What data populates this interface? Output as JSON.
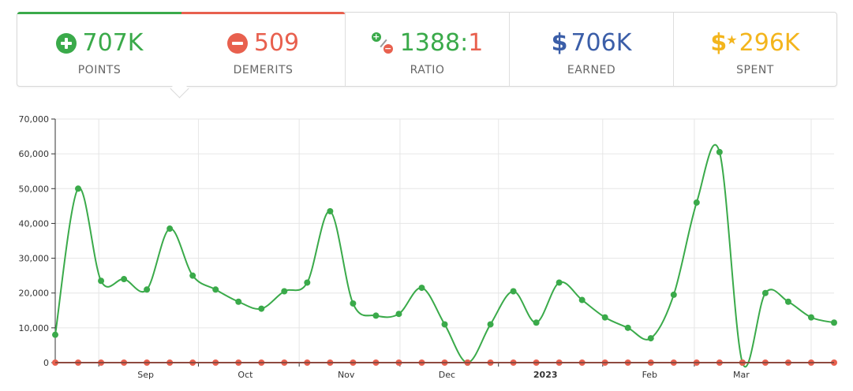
{
  "stats": {
    "points": {
      "value": "707K",
      "label": "POINTS",
      "icon": "plus-circle-icon",
      "color": "#3aaa4a"
    },
    "demerits": {
      "value": "509",
      "label": "DEMERITS",
      "icon": "minus-circle-icon",
      "color": "#e8604e"
    },
    "ratio": {
      "left": "1388",
      "colon": ":",
      "right": "1",
      "label": "RATIO",
      "icon": "ratio-icon"
    },
    "earned": {
      "symbol": "$",
      "value": "706K",
      "label": "EARNED",
      "icon": "dollar-icon",
      "color": "#3b5ea8"
    },
    "spent": {
      "symbol": "$",
      "star": "★",
      "value": "296K",
      "label": "SPENT",
      "icon": "dollar-star-icon",
      "color": "#f3b51d"
    }
  },
  "chart_data": {
    "type": "line",
    "ylim": [
      0,
      70000
    ],
    "y_ticks": [
      0,
      10000,
      20000,
      30000,
      40000,
      50000,
      60000,
      70000
    ],
    "y_tick_labels": [
      "0",
      "10,000",
      "20,000",
      "30,000",
      "40,000",
      "50,000",
      "60,000",
      "70,000"
    ],
    "x_labels": [
      {
        "text": "Sep",
        "after_index": 3.95,
        "bold": false
      },
      {
        "text": "Oct",
        "after_index": 8.3,
        "bold": false
      },
      {
        "text": "Nov",
        "after_index": 12.7,
        "bold": false
      },
      {
        "text": "Dec",
        "after_index": 17.1,
        "bold": false
      },
      {
        "text": "2023",
        "after_index": 21.4,
        "bold": true
      },
      {
        "text": "Feb",
        "after_index": 25.95,
        "bold": false
      },
      {
        "text": "Mar",
        "after_index": 29.95,
        "bold": false
      }
    ],
    "grid": true,
    "series": [
      {
        "color": "#3aaa4a",
        "values": [
          8000,
          50000,
          23500,
          24000,
          21000,
          38500,
          25000,
          21000,
          17500,
          15500,
          20500,
          23000,
          43500,
          17000,
          13500,
          14000,
          21500,
          11000,
          0,
          11000,
          20500,
          11500,
          23000,
          18000,
          13000,
          10000,
          7000,
          19500,
          46000,
          60500,
          0,
          20000,
          17500,
          13000,
          11500
        ]
      },
      {
        "color": "#e8604e",
        "values": [
          0,
          0,
          0,
          0,
          0,
          0,
          0,
          0,
          0,
          0,
          0,
          0,
          0,
          0,
          0,
          0,
          0,
          0,
          0,
          0,
          0,
          0,
          0,
          0,
          0,
          0,
          0,
          0,
          0,
          0,
          0,
          0,
          0,
          0,
          0
        ]
      }
    ]
  }
}
